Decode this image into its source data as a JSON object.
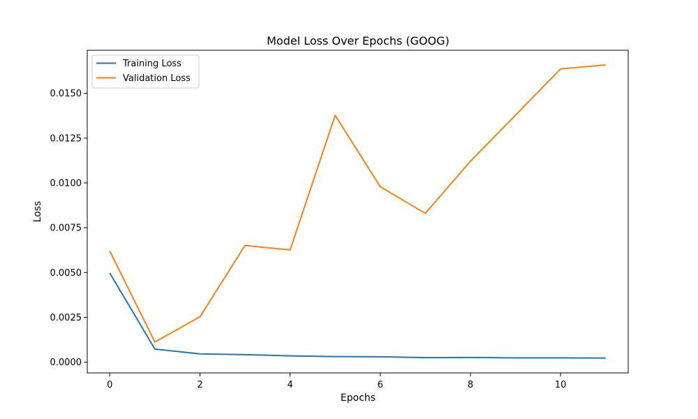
{
  "chart_data": {
    "type": "line",
    "title": "Model Loss Over Epochs (GOOG)",
    "xlabel": "Epochs",
    "ylabel": "Loss",
    "xlim": [
      -0.5,
      11.5
    ],
    "ylim": [
      -0.0006,
      0.0174
    ],
    "xticks": [
      0,
      2,
      4,
      6,
      8,
      10
    ],
    "yticks": [
      0.0,
      0.0025,
      0.005,
      0.0075,
      0.01,
      0.0125,
      0.015
    ],
    "ytick_labels": [
      "0.0000",
      "0.0025",
      "0.0050",
      "0.0075",
      "0.0100",
      "0.0125",
      "0.0150"
    ],
    "grid": false,
    "legend_position": "top-left",
    "x": [
      0,
      1,
      2,
      3,
      4,
      5,
      6,
      7,
      8,
      9,
      10,
      11
    ],
    "series": [
      {
        "name": "Training Loss",
        "color": "#1f77b4",
        "values": [
          0.00497,
          0.00073,
          0.00046,
          0.00042,
          0.00035,
          0.00031,
          0.0003,
          0.00025,
          0.00026,
          0.00024,
          0.00024,
          0.00023
        ]
      },
      {
        "name": "Validation Loss",
        "color": "#ff7f0e",
        "values": [
          0.0062,
          0.00112,
          0.00253,
          0.00651,
          0.00626,
          0.01377,
          0.00979,
          0.0083,
          0.01121,
          0.01378,
          0.01636,
          0.01658
        ]
      }
    ]
  }
}
